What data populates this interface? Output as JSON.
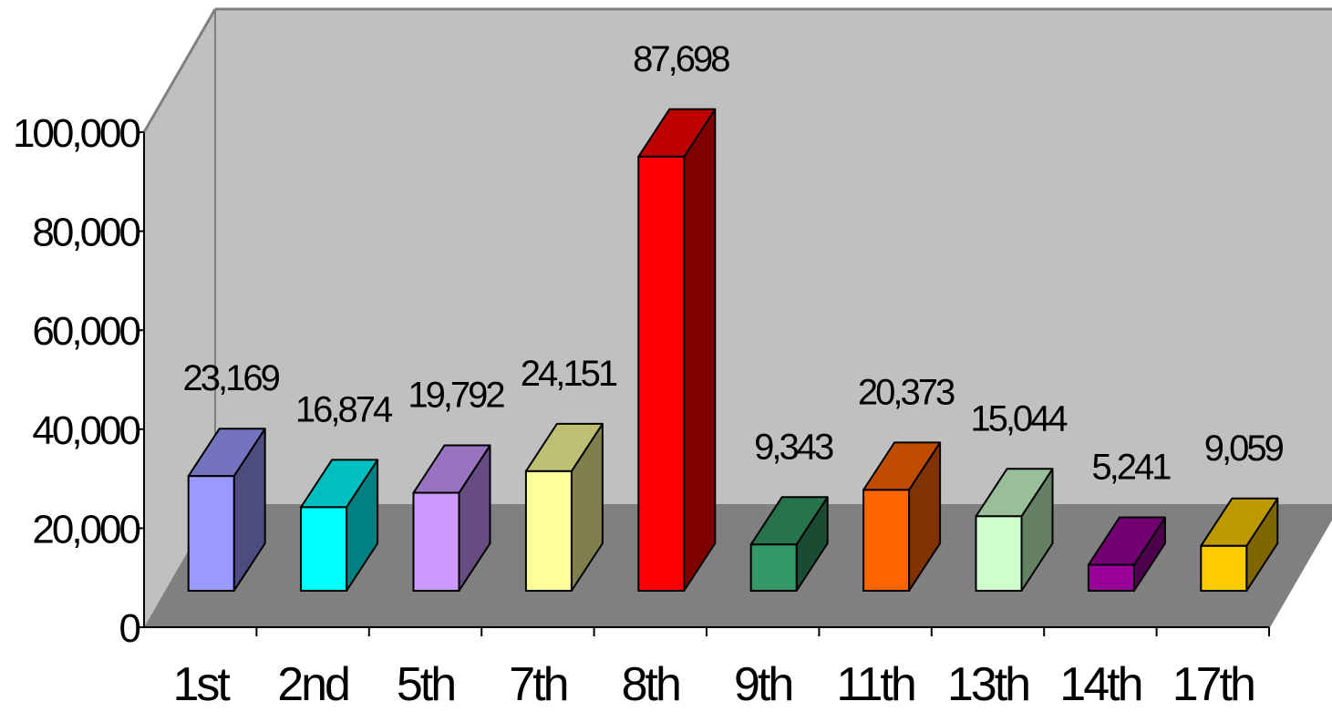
{
  "chart_data": {
    "type": "bar",
    "style": "3d-column",
    "categories": [
      "1st",
      "2nd",
      "5th",
      "7th",
      "8th",
      "9th",
      "11th",
      "13th",
      "14th",
      "17th"
    ],
    "values": [
      23169,
      16874,
      19792,
      24151,
      87698,
      9343,
      20373,
      15044,
      5241,
      9059
    ],
    "value_labels": [
      "23,169",
      "16,874",
      "19,792",
      "24,151",
      "87,698",
      "9,343",
      "20,373",
      "15,044",
      "5,241",
      "9,059"
    ],
    "ylim": [
      0,
      100000
    ],
    "yticks": [
      0,
      20000,
      40000,
      60000,
      80000,
      100000
    ],
    "ytick_labels": [
      "0",
      "20,000",
      "40,000",
      "60,000",
      "80,000",
      "100,000"
    ],
    "title": "",
    "xlabel": "",
    "ylabel": "",
    "grid": false,
    "legend": "none",
    "colors": {
      "back_wall": "#c0c0c0",
      "floor": "#808080",
      "wall_edge": "#808080",
      "bars": [
        {
          "front": "#9999ff",
          "top": "#7373bf",
          "side": "#4c4c80"
        },
        {
          "front": "#00ffff",
          "top": "#00bfbf",
          "side": "#008080"
        },
        {
          "front": "#cc99ff",
          "top": "#9973bf",
          "side": "#664c80"
        },
        {
          "front": "#ffff99",
          "top": "#bfbf73",
          "side": "#80804c"
        },
        {
          "front": "#ff0000",
          "top": "#bf0000",
          "side": "#800000"
        },
        {
          "front": "#339966",
          "top": "#26734c",
          "side": "#1a4c33"
        },
        {
          "front": "#ff6600",
          "top": "#bf4c00",
          "side": "#803300"
        },
        {
          "front": "#ccffcc",
          "top": "#99bf99",
          "side": "#668066"
        },
        {
          "front": "#990099",
          "top": "#730073",
          "side": "#4c004c"
        },
        {
          "front": "#ffcc00",
          "top": "#bf9900",
          "side": "#806600"
        }
      ]
    }
  }
}
